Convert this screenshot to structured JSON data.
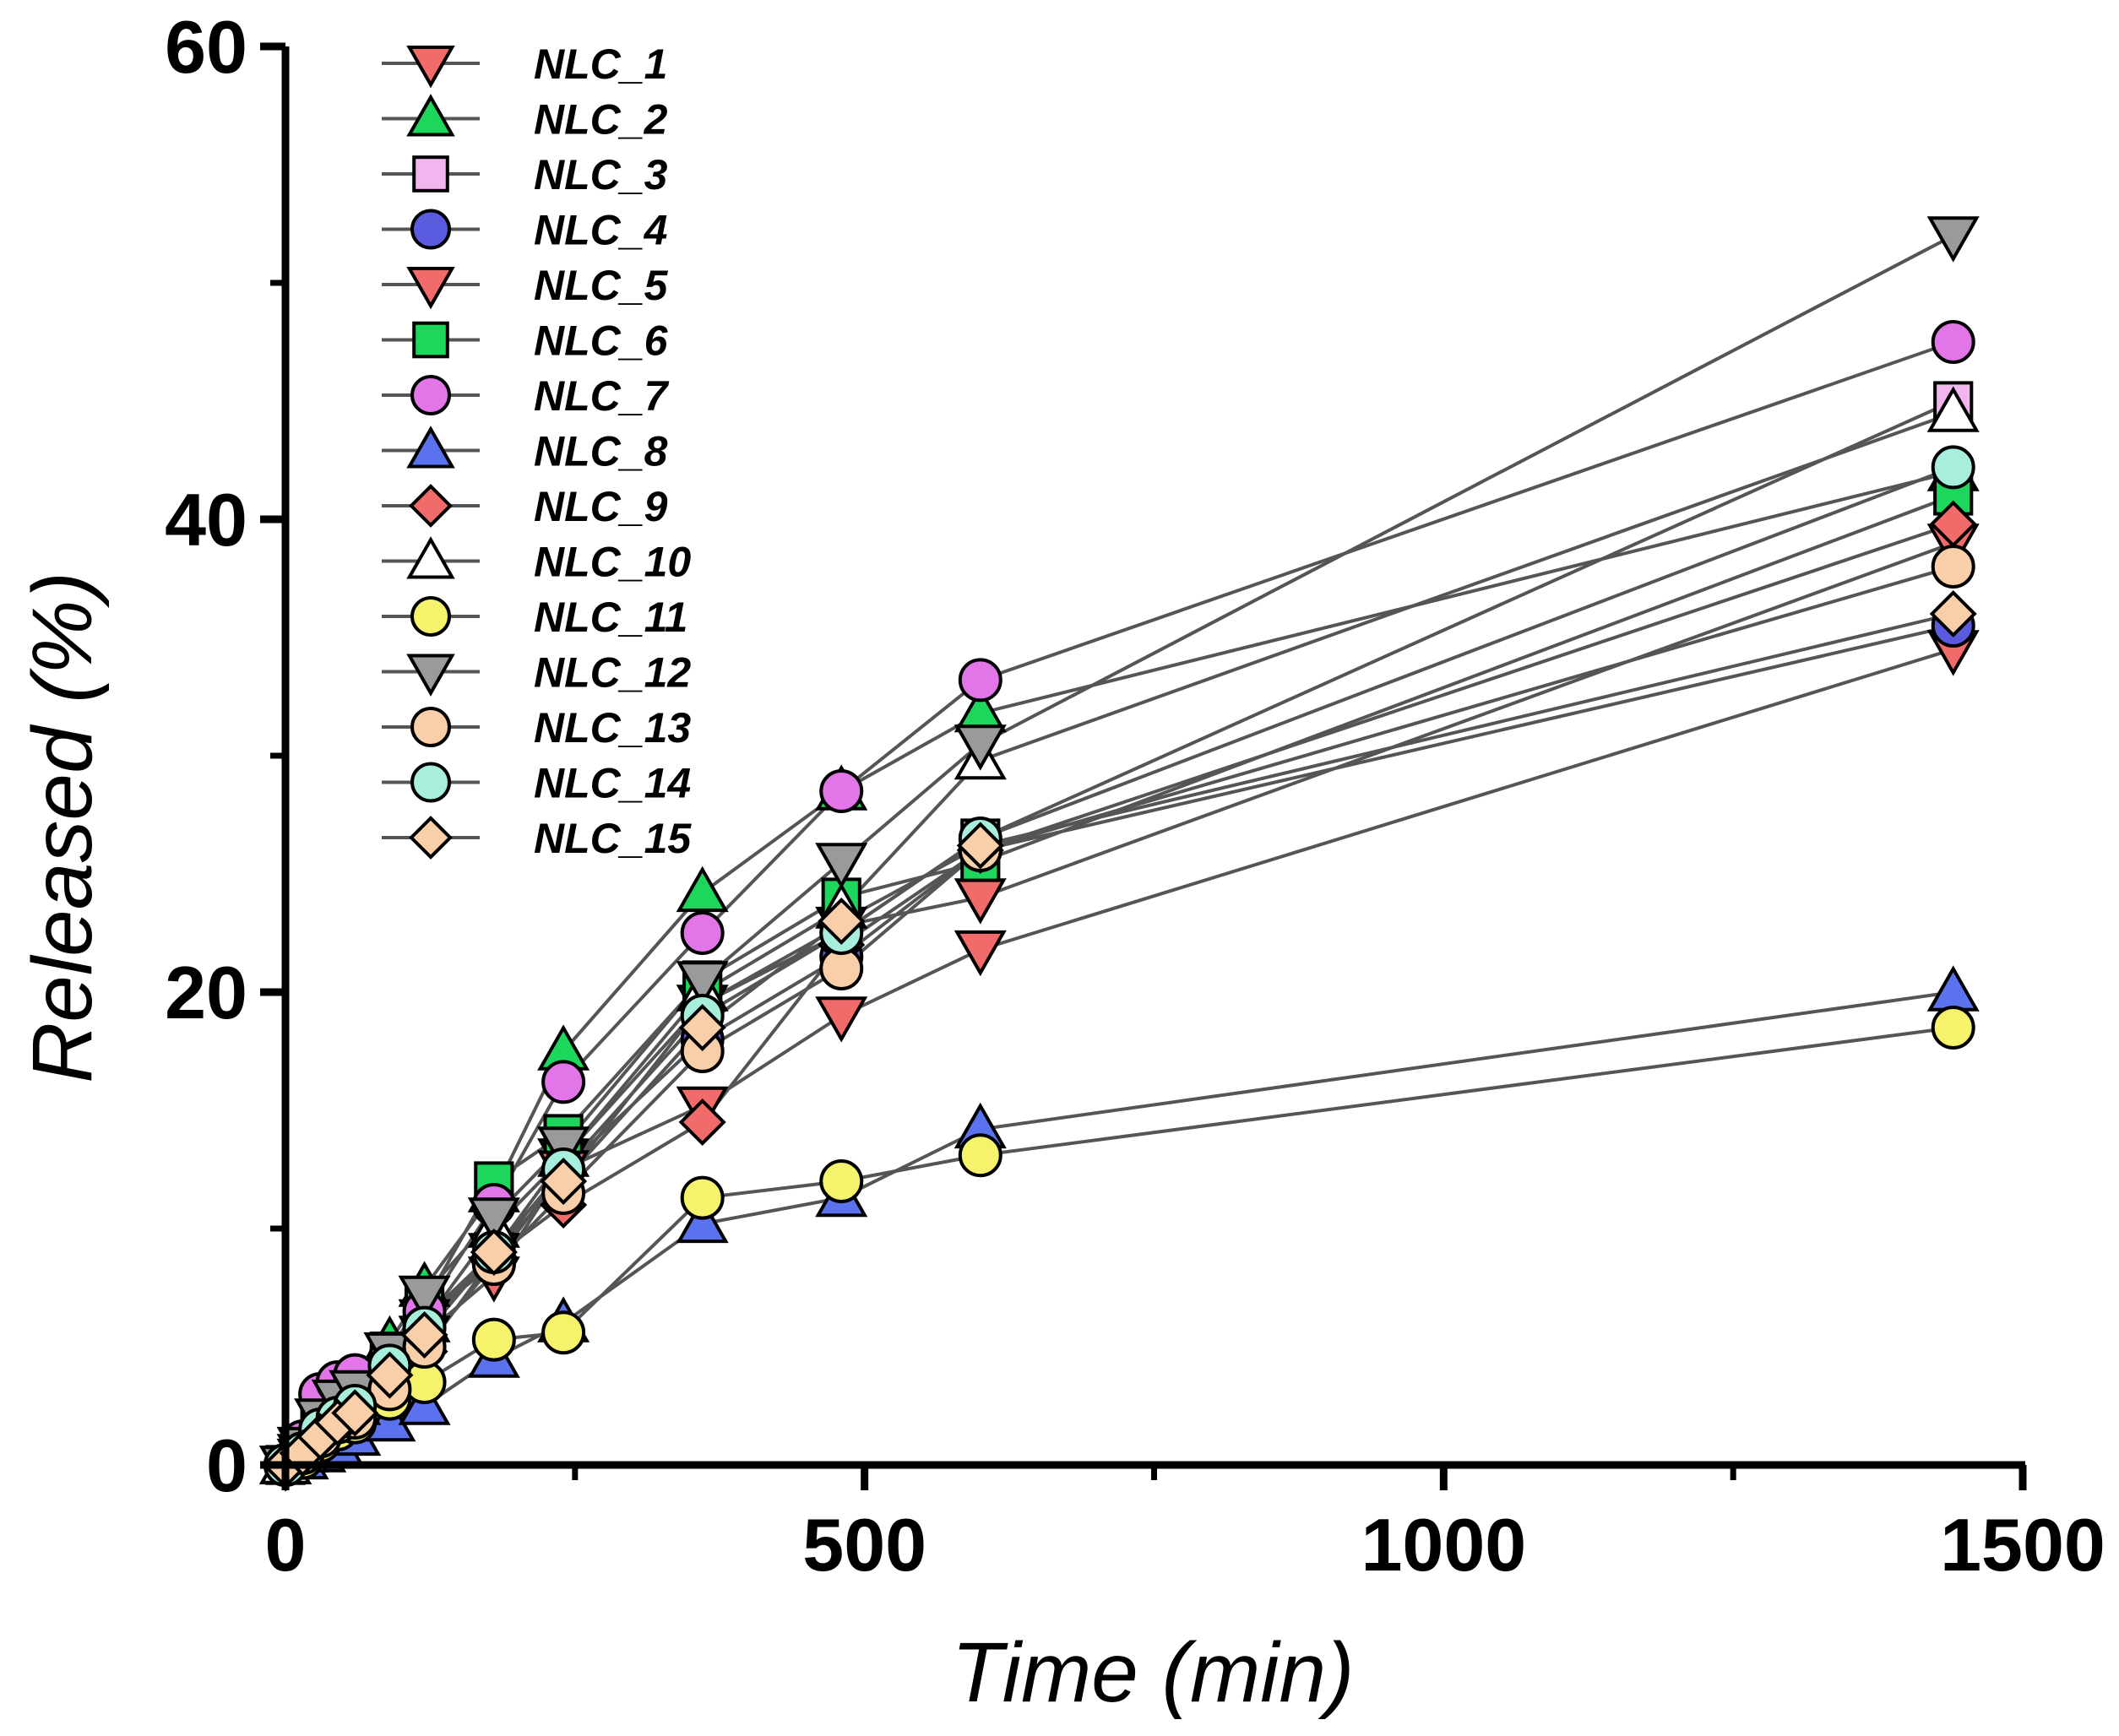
{
  "chart_data": {
    "type": "scatter",
    "title": "",
    "xlabel": "Time (min)",
    "ylabel": "Released (%)",
    "xlim": [
      0,
      1500
    ],
    "ylim": [
      0,
      60
    ],
    "x_ticks": [
      0,
      500,
      1000,
      1500
    ],
    "x_tick_labels": [
      "0",
      "500",
      "1000",
      "1500"
    ],
    "y_ticks": [
      0,
      20,
      40,
      60
    ],
    "y_tick_labels": [
      "0",
      "20",
      "40",
      "60"
    ],
    "x_minor_ticks": [
      250,
      750,
      1250
    ],
    "y_minor_ticks": [
      10,
      30,
      50
    ],
    "grid": false,
    "legend_position": "top-left",
    "x": [
      0,
      15,
      30,
      45,
      60,
      90,
      120,
      180,
      240,
      360,
      480,
      600,
      1440
    ],
    "series": [
      {
        "name": "NLC_1",
        "marker": "triangle-down",
        "color": "#F26B6B",
        "values": [
          0,
          0.5,
          1.0,
          1.5,
          2.2,
          3.5,
          5.5,
          8.0,
          12.5,
          15.2,
          19.0,
          21.8,
          34.5
        ]
      },
      {
        "name": "NLC_2",
        "marker": "triangle-up",
        "color": "#1DD65C",
        "values": [
          0,
          0.5,
          2.0,
          3.2,
          3.5,
          5.2,
          7.5,
          11.5,
          17.5,
          24.2,
          28.5,
          31.8,
          42.0
        ]
      },
      {
        "name": "NLC_3",
        "marker": "square",
        "color": "#F1B6EE",
        "values": [
          0,
          0.3,
          1.2,
          2.0,
          2.5,
          4.5,
          6.0,
          9.0,
          12.0,
          19.5,
          22.5,
          26.5,
          45.0
        ]
      },
      {
        "name": "NLC_4",
        "marker": "circle",
        "color": "#5B5BE0",
        "values": [
          0,
          0.5,
          1.5,
          2.0,
          2.8,
          4.2,
          6.2,
          8.5,
          12.5,
          18.0,
          21.5,
          26.0,
          35.5
        ]
      },
      {
        "name": "NLC_5",
        "marker": "triangle-down",
        "color": "#F26B6B",
        "values": [
          0,
          0.3,
          1.0,
          1.8,
          2.2,
          3.8,
          6.2,
          9.0,
          13.0,
          19.5,
          22.8,
          24.0,
          39.0
        ]
      },
      {
        "name": "NLC_6",
        "marker": "square",
        "color": "#1DD65C",
        "values": [
          0,
          0.5,
          1.5,
          2.2,
          2.8,
          4.8,
          6.8,
          12.0,
          14.0,
          20.5,
          24.0,
          25.5,
          41.0
        ]
      },
      {
        "name": "NLC_7",
        "marker": "circle",
        "color": "#E276E8",
        "values": [
          0,
          1.0,
          3.0,
          3.5,
          3.8,
          4.5,
          6.5,
          11.0,
          16.2,
          22.5,
          28.5,
          33.2,
          47.5
        ]
      },
      {
        "name": "NLC_8",
        "marker": "triangle-up",
        "color": "#5B72EE",
        "values": [
          0,
          0.2,
          0.5,
          0.8,
          1.2,
          1.8,
          2.5,
          4.5,
          6.0,
          10.2,
          11.3,
          14.2,
          20.0
        ]
      },
      {
        "name": "NLC_9",
        "marker": "diamond",
        "color": "#F26B6B",
        "values": [
          0,
          0.5,
          1.5,
          1.8,
          2.2,
          3.5,
          4.8,
          8.8,
          11.0,
          14.5,
          22.0,
          26.0,
          39.8
        ]
      },
      {
        "name": "NLC_10",
        "marker": "triangle-up",
        "color": "#FFFFFF",
        "values": [
          0,
          0.5,
          1.5,
          2.0,
          2.5,
          4.0,
          6.0,
          10.0,
          13.0,
          20.0,
          23.5,
          29.8,
          44.5
        ]
      },
      {
        "name": "NLC_11",
        "marker": "circle",
        "color": "#F5F26B",
        "values": [
          0,
          0.3,
          1.0,
          1.5,
          1.8,
          2.8,
          3.5,
          5.3,
          5.6,
          11.3,
          12.0,
          13.1,
          18.5
        ]
      },
      {
        "name": "NLC_12",
        "marker": "triangle-down",
        "color": "#9A9A9A",
        "values": [
          0,
          0.8,
          2.0,
          2.8,
          3.2,
          4.8,
          7.2,
          10.5,
          13.5,
          20.5,
          25.5,
          30.5,
          52.0
        ]
      },
      {
        "name": "NLC_13",
        "marker": "circle",
        "color": "#F8CFA8",
        "values": [
          0,
          0.5,
          1.2,
          1.8,
          2.0,
          3.2,
          5.0,
          8.5,
          11.5,
          17.5,
          21.0,
          26.0,
          38.0
        ]
      },
      {
        "name": "NLC_14",
        "marker": "circle",
        "color": "#A8EEDC",
        "values": [
          0,
          0.5,
          1.5,
          2.0,
          2.5,
          4.2,
          5.8,
          9.0,
          12.5,
          19.0,
          22.5,
          26.5,
          42.2
        ]
      },
      {
        "name": "NLC_15",
        "marker": "diamond",
        "color": "#F8CFA8",
        "values": [
          0,
          0.5,
          1.2,
          1.8,
          2.2,
          3.8,
          5.5,
          9.0,
          12.0,
          18.5,
          23.0,
          26.2,
          36.0
        ]
      }
    ]
  }
}
